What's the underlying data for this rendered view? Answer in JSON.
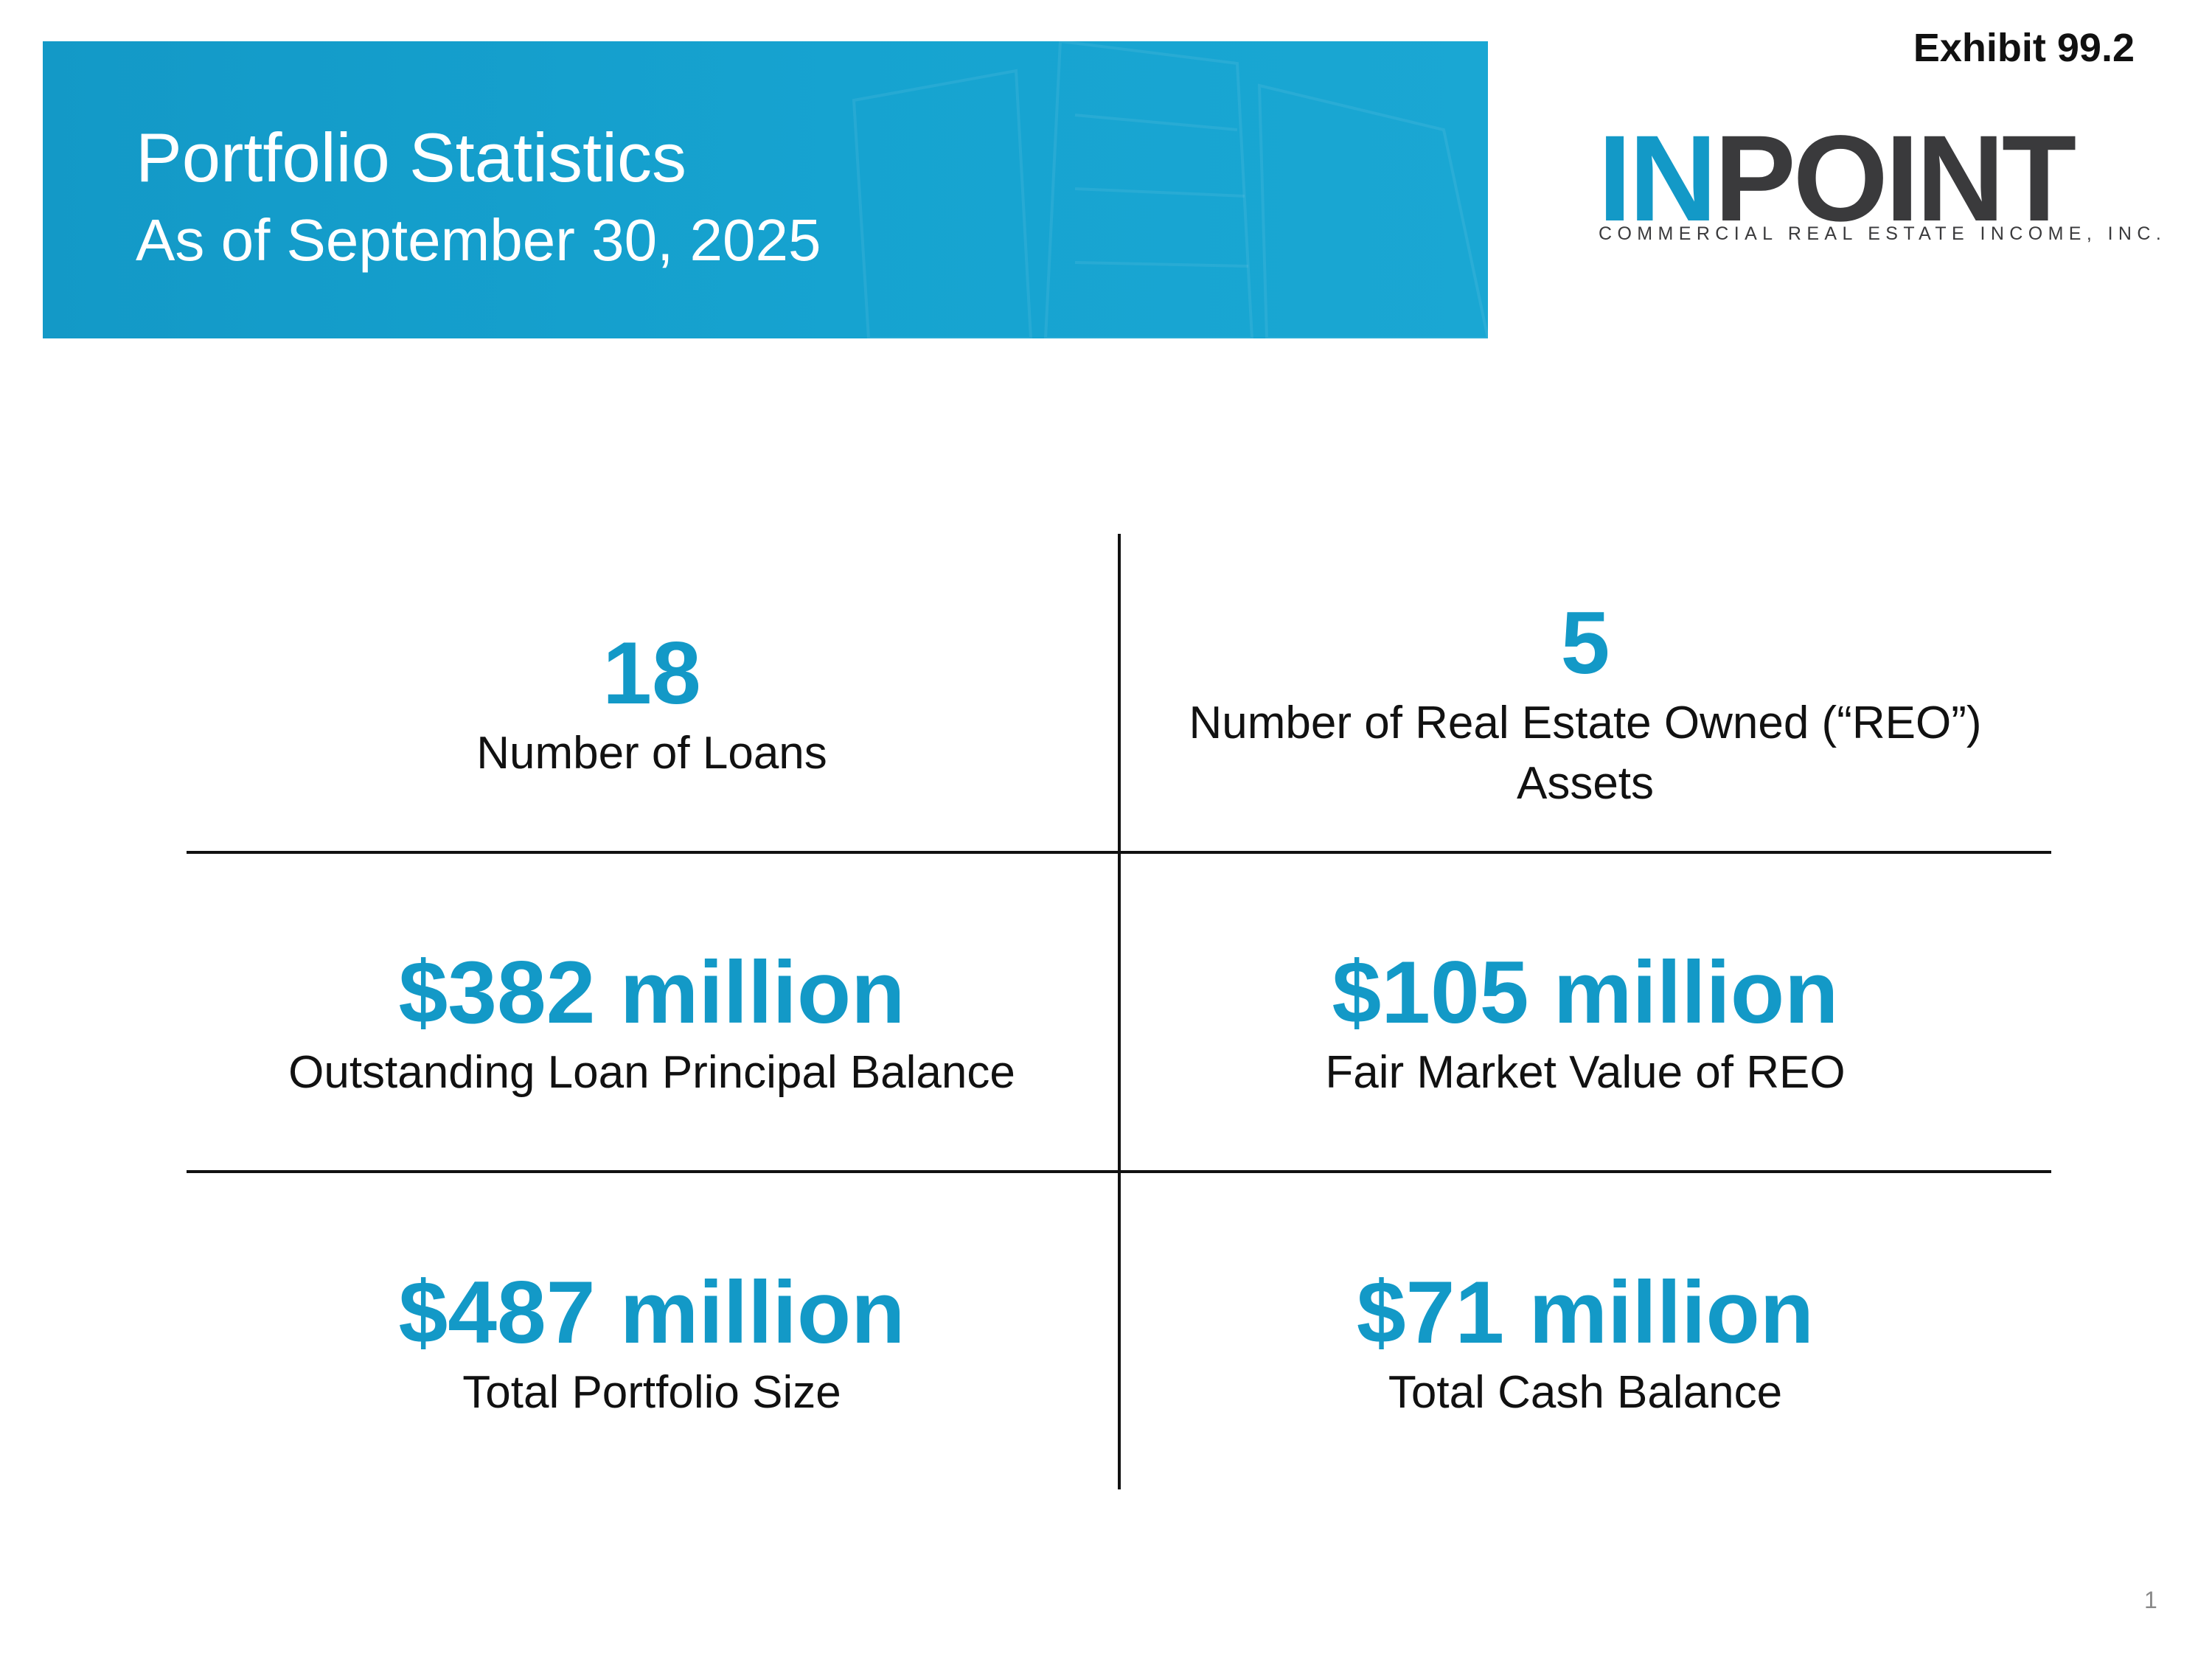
{
  "exhibit": "Exhibit 99.2",
  "header": {
    "title": "Portfolio Statistics",
    "subtitle": "As of September 30, 2025"
  },
  "logo": {
    "accent": "IN",
    "rest": "POINT",
    "tagline": "COMMERCIAL REAL ESTATE INCOME, INC."
  },
  "stats": [
    {
      "value": "18",
      "label": "Number of Loans"
    },
    {
      "value": "5",
      "label": "Number of Real Estate Owned (“REO”) Assets"
    },
    {
      "value": "$382 million",
      "label": "Outstanding Loan Principal Balance"
    },
    {
      "value": "$105 million",
      "label": "Fair Market Value of REO"
    },
    {
      "value": "$487 million",
      "label": "Total Portfolio Size"
    },
    {
      "value": "$71 million",
      "label": "Total Cash Balance"
    }
  ],
  "page_number": "1"
}
